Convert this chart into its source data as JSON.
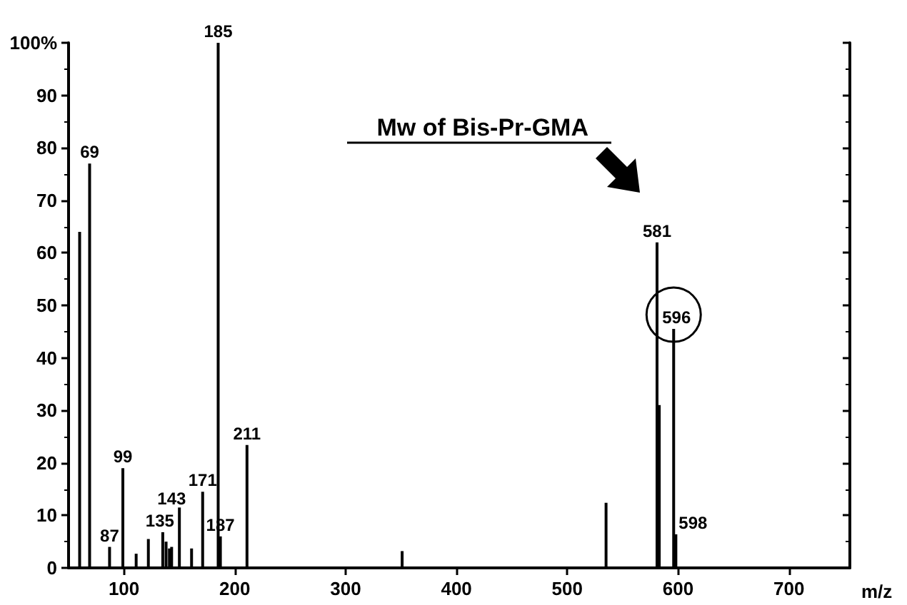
{
  "chart_data": {
    "type": "bar",
    "xlabel": "m/z",
    "x": [
      60,
      69,
      87,
      99,
      111,
      122,
      135,
      138,
      141,
      143,
      150,
      161,
      171,
      185,
      187,
      211,
      351,
      535,
      581,
      583,
      596,
      598
    ],
    "series": [
      {
        "color": "#000000",
        "values": [
          64,
          77,
          4,
          19,
          2.7,
          5.5,
          6.8,
          5,
          3.7,
          4,
          11.5,
          3.7,
          14.5,
          100,
          6,
          23.4,
          3.2,
          12.4,
          62,
          31,
          45.5,
          6.4
        ]
      }
    ],
    "xlim": [
      50,
      755
    ],
    "xticks": [
      100,
      200,
      300,
      400,
      500,
      600,
      700
    ],
    "ylim": [
      0,
      100
    ],
    "yticks": [
      0,
      10,
      20,
      30,
      40,
      50,
      60,
      70,
      80,
      90,
      {
        "value": 100,
        "label": "100%"
      }
    ],
    "grid": false,
    "annotations": [
      {
        "text": "69",
        "x": 69,
        "y": 77
      },
      {
        "text": "87",
        "x": 87,
        "y": 4
      },
      {
        "text": "99",
        "x": 99,
        "y": 19
      },
      {
        "text": "135",
        "x": 135,
        "y": 6.8
      },
      {
        "text": "143",
        "x": 143,
        "y": 4
      },
      {
        "text": "171",
        "x": 171,
        "y": 14.5
      },
      {
        "text": "185",
        "x": 185,
        "y": 100
      },
      {
        "text": "187",
        "x": 187,
        "y": 6
      },
      {
        "text": "211",
        "x": 211,
        "y": 23.4
      },
      {
        "text": "581",
        "x": 581,
        "y": 62
      },
      {
        "text": "596",
        "x": 596,
        "y": 45.5
      },
      {
        "text": "598",
        "x": 598,
        "y": 6.4
      },
      "Mw of Bis-Pr-GMA"
    ]
  }
}
